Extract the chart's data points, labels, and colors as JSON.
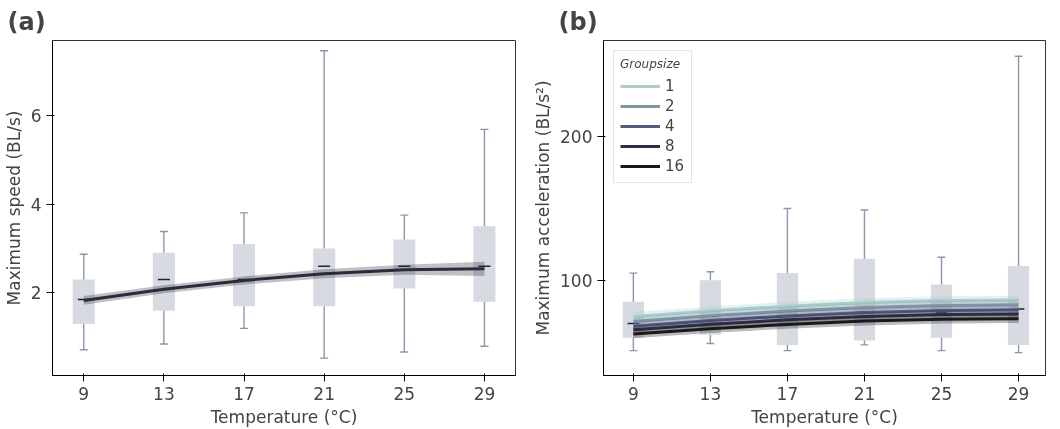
{
  "chart_data": [
    {
      "type": "line",
      "title": "(a)",
      "xlabel": "Temperature (°C)",
      "ylabel": "Maximum speed (BL/s)",
      "x": [
        9,
        13,
        17,
        21,
        25,
        29
      ],
      "xlim": [
        7.44,
        30.55
      ],
      "ylim": [
        0.14,
        7.68
      ],
      "xticks": [
        9,
        13,
        17,
        21,
        25,
        29
      ],
      "yticks": [
        2,
        4,
        6
      ],
      "legend": false,
      "line_style": "solid",
      "series": [
        {
          "type": "box",
          "color": "#8c96aa",
          "boxes": [
            {
              "low": 0.72,
              "q1": 1.3,
              "median": 1.85,
              "q3": 2.3,
              "high": 2.87
            },
            {
              "low": 0.85,
              "q1": 1.6,
              "median": 2.3,
              "q3": 2.9,
              "high": 3.38
            },
            {
              "low": 1.2,
              "q1": 1.7,
              "median": 2.3,
              "q3": 3.1,
              "high": 3.8
            },
            {
              "low": 0.53,
              "q1": 1.7,
              "median": 2.6,
              "q3": 3.0,
              "high": 7.45
            },
            {
              "low": 0.67,
              "q1": 2.1,
              "median": 2.6,
              "q3": 3.2,
              "high": 3.75
            },
            {
              "low": 0.8,
              "q1": 1.8,
              "median": 2.6,
              "q3": 3.5,
              "high": 5.68
            }
          ]
        },
        {
          "color": "#2b2b3a",
          "values": [
            1.83,
            2.08,
            2.28,
            2.43,
            2.52,
            2.54
          ],
          "lower": [
            1.73,
            1.99,
            2.19,
            2.33,
            2.41,
            2.38
          ],
          "upper": [
            1.93,
            2.17,
            2.37,
            2.53,
            2.63,
            2.7
          ]
        }
      ]
    },
    {
      "type": "line",
      "title": "(b)",
      "xlabel": "Temperature (°C)",
      "ylabel": "Maximum acceleration (BL/s²)",
      "legend_title": "Groupsize",
      "x": [
        9,
        13,
        17,
        21,
        25,
        29
      ],
      "xlim": [
        7.45,
        30.4
      ],
      "ylim": [
        33.7,
        267
      ],
      "xticks": [
        9,
        13,
        17,
        21,
        25,
        29
      ],
      "yticks": [
        100,
        200
      ],
      "legend": "top left",
      "line_style": "solid",
      "series": [
        {
          "type": "box",
          "color": "#8c96aa",
          "boxes": [
            {
              "low": 51,
              "q1": 60,
              "median": 70,
              "q3": 85,
              "high": 105
            },
            {
              "low": 56,
              "q1": 62,
              "median": 75,
              "q3": 100,
              "high": 106
            },
            {
              "low": 51,
              "q1": 55,
              "median": 75,
              "q3": 105,
              "high": 150
            },
            {
              "low": 55,
              "q1": 58,
              "median": 78,
              "q3": 115,
              "high": 149
            },
            {
              "low": 51,
              "q1": 60,
              "median": 78,
              "q3": 97,
              "high": 116
            },
            {
              "low": 49.6,
              "q1": 55,
              "median": 80,
              "q3": 110,
              "high": 256
            }
          ]
        },
        {
          "name": "1",
          "color": "#a9cccc",
          "values": [
            74.7,
            78.8,
            82.0,
            84.5,
            85.9,
            86.3
          ],
          "lower": [
            71.7,
            75.8,
            79.0,
            81.5,
            82.9,
            83.3
          ],
          "upper": [
            77.7,
            81.8,
            85.0,
            87.5,
            88.9,
            89.3
          ]
        },
        {
          "name": "2",
          "color": "#7f96a5",
          "values": [
            71.3,
            75.4,
            78.6,
            81.1,
            82.5,
            82.9
          ],
          "lower": [
            68.3,
            72.4,
            75.6,
            78.1,
            79.5,
            79.9
          ],
          "upper": [
            74.3,
            78.4,
            81.6,
            84.1,
            85.5,
            85.9
          ]
        },
        {
          "name": "4",
          "color": "#555c80",
          "values": [
            68.0,
            72.0,
            75.2,
            77.6,
            79.0,
            79.5
          ],
          "lower": [
            65.0,
            69.0,
            72.2,
            74.6,
            76.0,
            76.5
          ],
          "upper": [
            71.0,
            75.0,
            78.2,
            80.6,
            82.0,
            82.5
          ]
        },
        {
          "name": "8",
          "color": "#2e2e48",
          "values": [
            65.5,
            69.4,
            72.5,
            74.8,
            76.2,
            76.6
          ],
          "lower": [
            62.5,
            66.4,
            69.5,
            71.8,
            73.2,
            73.6
          ],
          "upper": [
            68.5,
            72.4,
            75.5,
            77.8,
            79.2,
            79.6
          ]
        },
        {
          "name": "16",
          "color": "#1a1a1a",
          "values": [
            62.6,
            66.3,
            69.3,
            71.6,
            72.9,
            73.3
          ],
          "lower": [
            59.6,
            63.3,
            66.3,
            68.6,
            69.9,
            70.3
          ],
          "upper": [
            65.6,
            69.3,
            72.3,
            74.6,
            75.9,
            76.3
          ]
        }
      ]
    }
  ]
}
